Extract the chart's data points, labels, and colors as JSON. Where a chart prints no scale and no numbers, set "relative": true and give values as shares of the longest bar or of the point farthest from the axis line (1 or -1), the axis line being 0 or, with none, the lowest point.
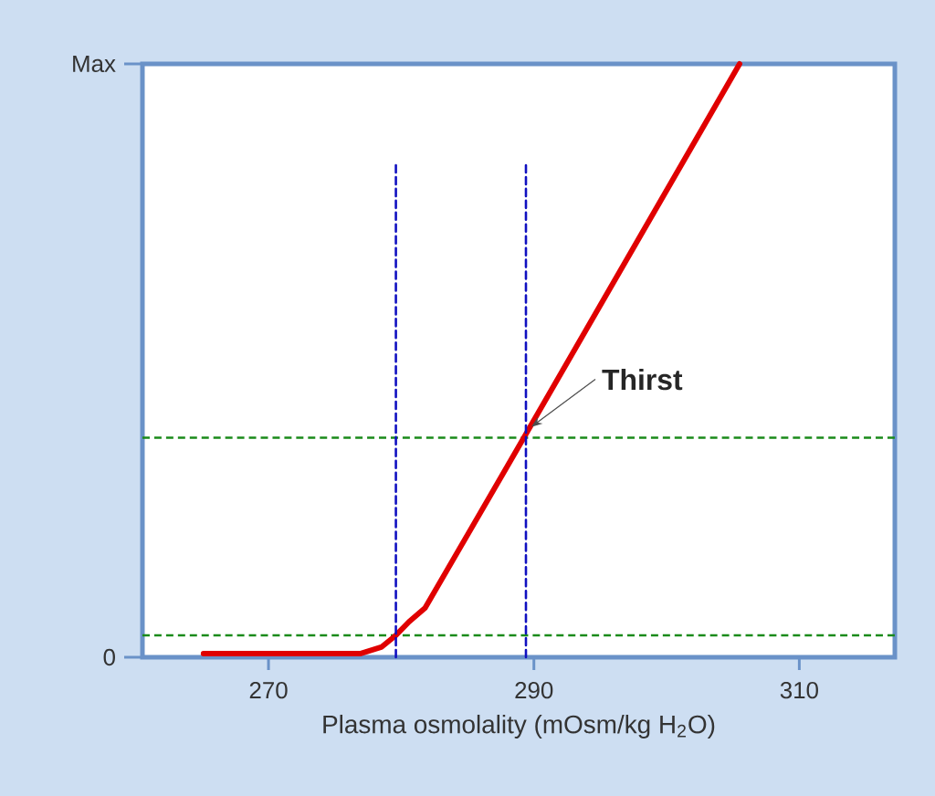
{
  "chart_data": {
    "type": "line",
    "xlabel": "Plasma osmolality (mOsm/kg H$_{2}$O)",
    "xlim": [
      260.5,
      317.2
    ],
    "xticks": [
      270,
      290,
      310
    ],
    "relative": true,
    "series": [
      {
        "color": "#e00000",
        "x": [
          265.1,
          276.9,
          278.5,
          279.6,
          280.6,
          281.8,
          289.4,
          305.5
        ],
        "values": [
          0.006,
          0.006,
          0.017,
          0.037,
          0.06,
          0.083,
          0.376,
          1.0
        ]
      },
      {
        "color": "#1010c0",
        "line_style": "dashed",
        "x": [
          279.6,
          279.6
        ],
        "values": [
          0,
          0.83
        ]
      },
      {
        "color": "#1010c0",
        "line_style": "dashed",
        "x": [
          289.4,
          289.4
        ],
        "values": [
          0,
          0.83
        ]
      }
    ],
    "ref_lines": [
      {
        "axis": "y",
        "value": 0.037,
        "color": "#1a8a1a",
        "line_style": "dashed"
      },
      {
        "axis": "y",
        "value": 0.37,
        "color": "#1a8a1a",
        "line_style": "dashed"
      }
    ],
    "annotations": [
      {
        "text": "Thirst",
        "x": 289.4,
        "y": 0.376
      },
      "0",
      "Max"
    ],
    "grid": false
  }
}
